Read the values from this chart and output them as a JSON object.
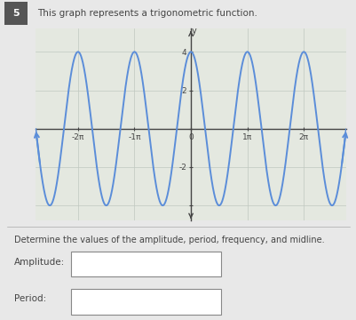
{
  "title_number": "5",
  "title_text": "This graph represents a trigonometric function.",
  "amplitude": 4,
  "frequency_multiplier": 2,
  "x_ticks_values": [
    -6.283185307,
    -3.141592654,
    0,
    3.141592654,
    6.283185307
  ],
  "x_tick_labels": [
    "-2π",
    "-1π",
    "0",
    "1π",
    "2π"
  ],
  "y_ticks": [
    -4,
    -2,
    0,
    2,
    4
  ],
  "y_tick_labels": [
    "",
    "-2",
    "",
    "2",
    "4"
  ],
  "line_color": "#5b8dd9",
  "line_width": 1.4,
  "grid_color": "#c0c8c0",
  "bg_color": "#e8e8e8",
  "plot_bg_color": "#e4e8e0",
  "spine_color": "#444444",
  "text_color": "#444444",
  "label_text": "Determine the values of the amplitude, period, frequency, and midline.",
  "amplitude_label": "Amplitude:",
  "period_label": "Period:"
}
